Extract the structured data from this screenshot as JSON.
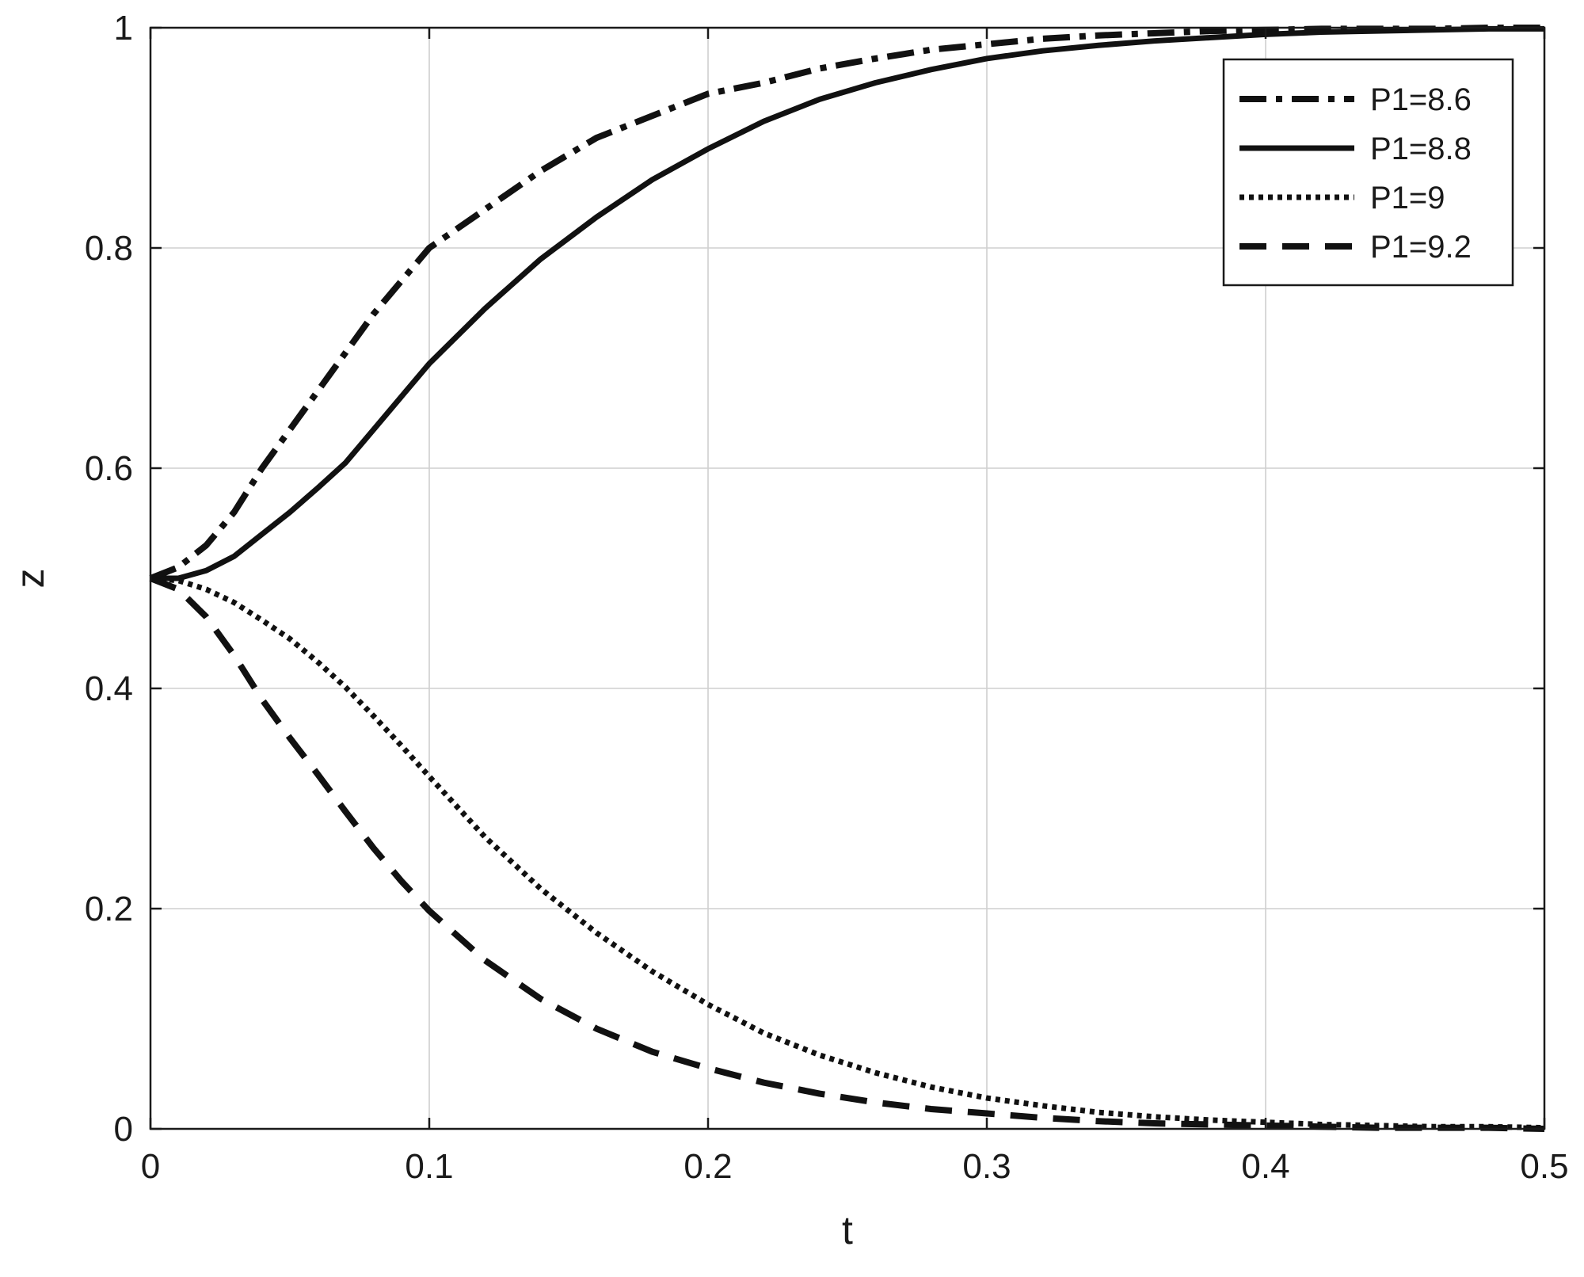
{
  "chart_data": {
    "type": "line",
    "title": "",
    "xlabel": "t",
    "ylabel": "z",
    "xlim": [
      0,
      0.5
    ],
    "ylim": [
      0,
      1
    ],
    "grid": true,
    "legend_position": "top-right",
    "x_ticks": [
      "0",
      "0.1",
      "0.2",
      "0.3",
      "0.4",
      "0.5"
    ],
    "y_ticks": [
      "0",
      "0.2",
      "0.4",
      "0.6",
      "0.8",
      "1"
    ],
    "x": [
      0,
      0.01,
      0.02,
      0.03,
      0.04,
      0.05,
      0.06,
      0.07,
      0.08,
      0.09,
      0.1,
      0.12,
      0.14,
      0.16,
      0.18,
      0.2,
      0.22,
      0.24,
      0.26,
      0.28,
      0.3,
      0.32,
      0.34,
      0.36,
      0.38,
      0.4,
      0.42,
      0.44,
      0.46,
      0.48,
      0.5
    ],
    "series": [
      {
        "name": "P1=8.6",
        "style": "dashdot",
        "color": "#111111",
        "values": [
          0.5,
          0.51,
          0.53,
          0.56,
          0.6,
          0.635,
          0.67,
          0.705,
          0.74,
          0.77,
          0.8,
          0.835,
          0.87,
          0.9,
          0.92,
          0.94,
          0.95,
          0.963,
          0.972,
          0.98,
          0.985,
          0.99,
          0.993,
          0.995,
          0.997,
          0.998,
          0.999,
          0.999,
          0.999,
          1.0,
          1.0
        ]
      },
      {
        "name": "P1=8.8",
        "style": "solid",
        "color": "#111111",
        "values": [
          0.5,
          0.5,
          0.507,
          0.52,
          0.54,
          0.56,
          0.582,
          0.605,
          0.635,
          0.665,
          0.695,
          0.745,
          0.79,
          0.828,
          0.862,
          0.89,
          0.915,
          0.935,
          0.95,
          0.962,
          0.972,
          0.979,
          0.984,
          0.988,
          0.991,
          0.994,
          0.996,
          0.997,
          0.998,
          0.999,
          0.999
        ]
      },
      {
        "name": "P1=9",
        "style": "dotted",
        "color": "#111111",
        "values": [
          0.5,
          0.498,
          0.49,
          0.478,
          0.462,
          0.445,
          0.424,
          0.401,
          0.375,
          0.348,
          0.32,
          0.265,
          0.218,
          0.178,
          0.143,
          0.113,
          0.087,
          0.067,
          0.051,
          0.038,
          0.028,
          0.021,
          0.015,
          0.011,
          0.008,
          0.006,
          0.004,
          0.003,
          0.002,
          0.002,
          0.001
        ]
      },
      {
        "name": "P1=9.2",
        "style": "dashed",
        "color": "#111111",
        "values": [
          0.5,
          0.49,
          0.465,
          0.43,
          0.39,
          0.355,
          0.322,
          0.288,
          0.255,
          0.225,
          0.198,
          0.153,
          0.118,
          0.091,
          0.07,
          0.055,
          0.042,
          0.032,
          0.024,
          0.018,
          0.014,
          0.01,
          0.007,
          0.005,
          0.004,
          0.003,
          0.002,
          0.001,
          0.001,
          0.001,
          0.0
        ]
      }
    ]
  }
}
